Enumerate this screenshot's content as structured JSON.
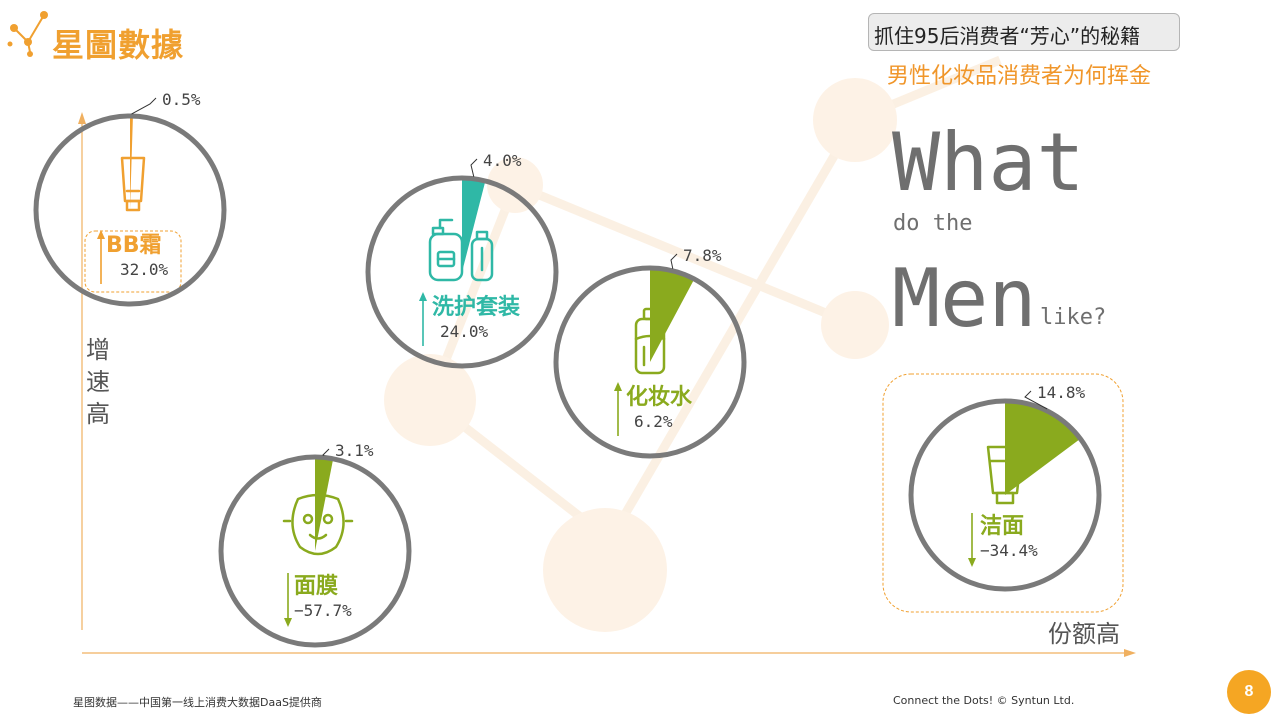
{
  "brand": {
    "logo_text": "星圖數據"
  },
  "header": {
    "tag": "抓住95后消费者“芳心”的秘籍",
    "subtitle": "男性化妆品消费者为何挥金"
  },
  "headline": {
    "line1": "What",
    "line2": "do the",
    "line3": "Men",
    "line4": "like?"
  },
  "colors": {
    "orange": "#f0a030",
    "teal": "#2fb8a6",
    "green": "#8aaa1e",
    "gray": "#7a7a7a"
  },
  "chart_data": {
    "type": "bubble",
    "xlabel": "份额高",
    "ylabel": "增速高",
    "unit": "%",
    "share_label": "share",
    "growth_label": "growth",
    "items": [
      {
        "name": "BB霜",
        "share": 0.5,
        "share_label": "0.5%",
        "growth": 32.0,
        "growth_label": "32.0%",
        "direction": "up",
        "color": "orange",
        "icon": "tube-icon"
      },
      {
        "name": "洗护套装",
        "share": 4.0,
        "share_label": "4.0%",
        "growth": 24.0,
        "growth_label": "24.0%",
        "direction": "up",
        "color": "teal",
        "icon": "bottle-set-icon"
      },
      {
        "name": "化妆水",
        "share": 7.8,
        "share_label": "7.8%",
        "growth": 6.2,
        "growth_label": "6.2%",
        "direction": "up",
        "color": "green",
        "icon": "toner-bottle-icon"
      },
      {
        "name": "面膜",
        "share": 3.1,
        "share_label": "3.1%",
        "growth": -57.7,
        "growth_label": "−57.7%",
        "direction": "down",
        "color": "green",
        "icon": "face-mask-icon"
      },
      {
        "name": "洁面",
        "share": 14.8,
        "share_label": "14.8%",
        "growth": -34.4,
        "growth_label": "−34.4%",
        "direction": "down",
        "color": "green",
        "icon": "cleanser-tube-icon"
      }
    ]
  },
  "footer": {
    "left": "星图数据——中国第一线上消费大数据DaaS提供商",
    "right": "Connect the Dots!  © Syntun Ltd.",
    "page": "8"
  }
}
